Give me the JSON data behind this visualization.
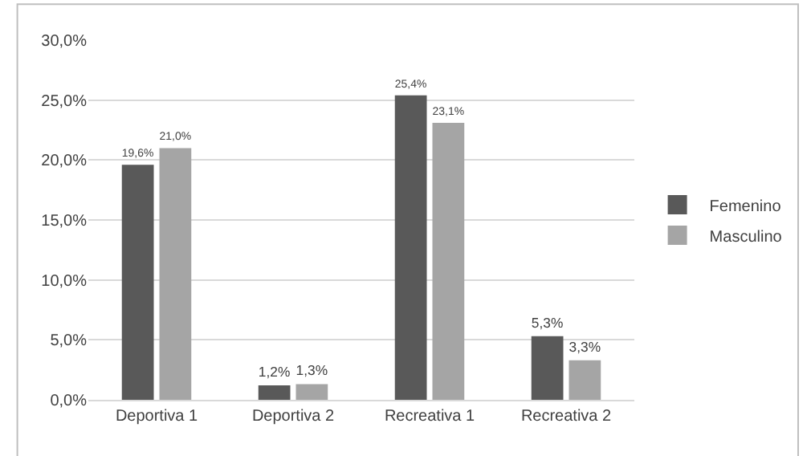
{
  "chart_data": {
    "type": "bar",
    "categories": [
      "Deportiva 1",
      "Deportiva 2",
      "Recreativa 1",
      "Recreativa 2"
    ],
    "series": [
      {
        "name": "Femenino",
        "color": "#595959",
        "values": [
          19.6,
          1.2,
          25.4,
          5.3
        ],
        "value_labels": [
          "19,6%",
          "1,2%",
          "25,4%",
          "5,3%"
        ]
      },
      {
        "name": "Masculino",
        "color": "#a5a5a5",
        "values": [
          21.0,
          1.3,
          23.1,
          3.3
        ],
        "value_labels": [
          "21,0%",
          "1,3%",
          "23,1%",
          "3,3%"
        ]
      }
    ],
    "ylim": [
      0,
      30
    ],
    "yticks": [
      {
        "value": 0,
        "label": "0,0%"
      },
      {
        "value": 5,
        "label": "5,0%"
      },
      {
        "value": 10,
        "label": "10,0%"
      },
      {
        "value": 15,
        "label": "15,0%"
      },
      {
        "value": 20,
        "label": "20,0%"
      },
      {
        "value": 25,
        "label": "25,0%"
      },
      {
        "value": 30,
        "label": "30,0%"
      }
    ],
    "grid": "y",
    "legend": "right"
  }
}
